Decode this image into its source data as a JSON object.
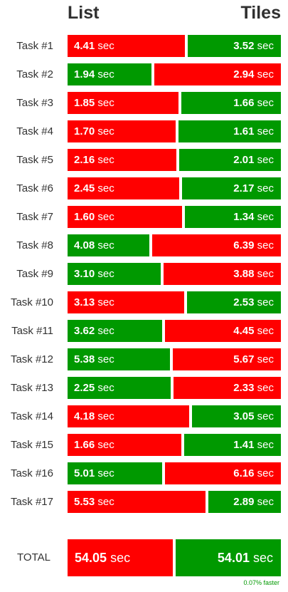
{
  "chart_data": {
    "type": "bar",
    "headers": {
      "left": "List",
      "right": "Tiles"
    },
    "unit": "sec",
    "categories": [
      "Task #1",
      "Task #2",
      "Task #3",
      "Task #4",
      "Task #5",
      "Task #6",
      "Task #7",
      "Task #8",
      "Task #9",
      "Task #10",
      "Task #11",
      "Task #12",
      "Task #13",
      "Task #14",
      "Task #15",
      "Task #16",
      "Task #17"
    ],
    "series": [
      {
        "name": "List",
        "values": [
          4.41,
          1.94,
          1.85,
          1.7,
          2.16,
          2.45,
          1.6,
          4.08,
          3.1,
          3.13,
          3.62,
          5.38,
          2.25,
          4.18,
          1.66,
          5.01,
          5.53
        ]
      },
      {
        "name": "Tiles",
        "values": [
          3.52,
          2.94,
          1.66,
          1.61,
          2.01,
          2.17,
          1.34,
          6.39,
          3.88,
          2.53,
          4.45,
          5.67,
          2.33,
          3.05,
          1.41,
          6.16,
          2.89
        ]
      }
    ],
    "total": {
      "label": "TOTAL",
      "left": "54.05",
      "right": "54.01"
    },
    "footnote": "0.07% faster",
    "colors": {
      "faster": "#009900",
      "slower": "#ff0000"
    }
  }
}
